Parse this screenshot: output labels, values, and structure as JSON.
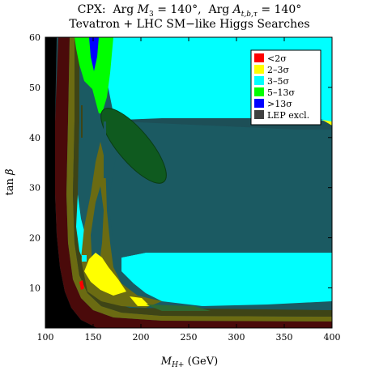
{
  "chart_data": {
    "type": "heatmap",
    "title_line1": "CPX:  Arg M₃ = 140°,  Arg Aₜ,ᵦ,τ = 140°",
    "title_line2": "Tevatron + LHC SM−like Higgs Searches",
    "xlabel": "M_H+ (GeV)",
    "ylabel": "tan β",
    "xlim": [
      100,
      400
    ],
    "ylim": [
      2,
      60
    ],
    "xticks": [
      100,
      150,
      200,
      250,
      300,
      350,
      400
    ],
    "yticks": [
      10,
      20,
      30,
      40,
      50,
      60
    ],
    "grid": false,
    "legend_position": "top-right",
    "legend": [
      {
        "label": "<2σ",
        "color": "#ff0000"
      },
      {
        "label": "2–3σ",
        "color": "#ffff00"
      },
      {
        "label": "3–5σ",
        "color": "#00ffff"
      },
      {
        "label": "5–13σ",
        "color": "#00ff00"
      },
      {
        "label": ">13σ",
        "color": "#0000ff"
      },
      {
        "label": "LEP excl.",
        "color": "#404040"
      }
    ]
  }
}
